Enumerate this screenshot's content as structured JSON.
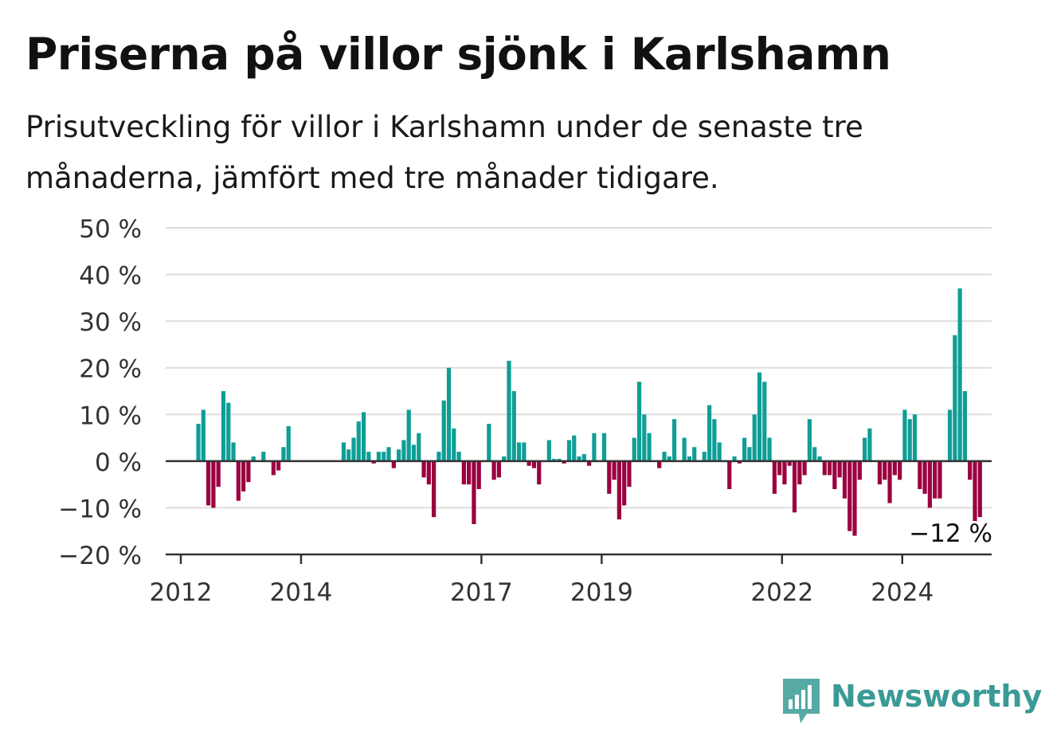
{
  "title": "Priserna på villor sjönk i Karlshamn",
  "subtitle": "Prisutveckling för villor i Karlshamn under de senaste tre månaderna, jämfört med tre månader tidigare.",
  "brand": {
    "name": "Newsworthy",
    "icon": "newsworthy-logo-icon",
    "color": "#3a9a95"
  },
  "colors": {
    "positive": "#0f9e96",
    "negative": "#9b0040",
    "grid": "#dddddd",
    "axis": "#333333"
  },
  "chart_data": {
    "type": "bar",
    "title": "Priserna på villor sjönk i Karlshamn",
    "subtitle": "Prisutveckling för villor i Karlshamn under de senaste tre månaderna, jämfört med tre månader tidigare.",
    "xlabel": "",
    "ylabel": "",
    "ylim": [
      -20,
      50
    ],
    "yticks": [
      -20,
      -10,
      0,
      10,
      20,
      30,
      40,
      50
    ],
    "ytick_labels": [
      "−20 %",
      "−10 %",
      "0 %",
      "10 %",
      "20 %",
      "30 %",
      "40 %",
      "50 %"
    ],
    "xticks": [
      "2012",
      "2014",
      "2017",
      "2019",
      "2022",
      "2024"
    ],
    "grid": true,
    "start": "2012-04",
    "frequency": "monthly",
    "values": [
      8,
      11,
      -9.5,
      -10,
      -5.5,
      15,
      12.5,
      4,
      -8.5,
      -6.5,
      -4.5,
      1,
      0,
      2,
      0,
      -3,
      -2,
      3,
      7.5,
      0,
      0,
      0,
      0,
      0,
      0,
      0,
      0,
      0,
      0,
      4,
      2.5,
      5,
      8.5,
      10.5,
      2,
      -0.5,
      2,
      2,
      3,
      -1.5,
      2.5,
      4.5,
      11,
      3.5,
      6,
      -3.5,
      -5,
      -12,
      2,
      13,
      20,
      7,
      2,
      -5,
      -5,
      -13.5,
      -6,
      0,
      8,
      -4,
      -3.5,
      1,
      21.5,
      15,
      4,
      4,
      -1,
      -1.5,
      -5,
      0,
      4.5,
      0.5,
      0.5,
      -0.5,
      4.5,
      5.5,
      1,
      1.5,
      -1,
      6,
      0,
      6,
      -7,
      -4,
      -12.5,
      -9.5,
      -5.5,
      5,
      17,
      10,
      6,
      0,
      -1.5,
      2,
      1,
      9,
      0,
      5,
      1,
      3,
      0,
      2,
      12,
      9,
      4,
      0,
      -6,
      1,
      -0.5,
      5,
      3,
      10,
      19,
      17,
      5,
      -7,
      -3,
      -5,
      -1,
      -11,
      -5,
      -3,
      9,
      3,
      1,
      -3,
      -3,
      -6,
      -3.5,
      -8,
      -15,
      -16,
      -4,
      5,
      7,
      0,
      -5,
      -4,
      -9,
      -3,
      -4,
      11,
      9,
      10,
      -6,
      -7,
      -10,
      -8,
      -8,
      0,
      11,
      27,
      37,
      15,
      -4,
      -13.5,
      -12
    ],
    "annotation": {
      "label": "−12 %",
      "value": -12
    }
  }
}
